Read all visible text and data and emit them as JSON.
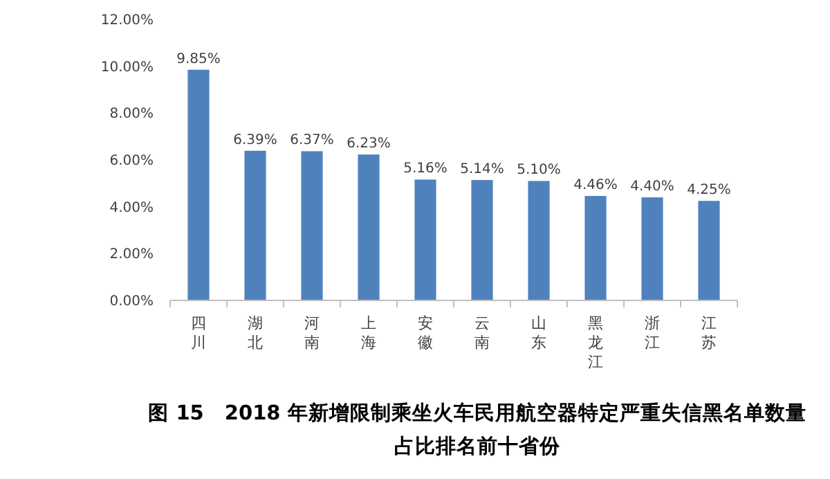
{
  "chart_data": {
    "type": "bar",
    "title": "图 15　2018 年新增限制乘坐火车民用航空器特定严重失信黑名单数量占比排名前十省份",
    "categories": [
      "四川",
      "湖北",
      "河南",
      "上海",
      "安徽",
      "云南",
      "山东",
      "黑龙江",
      "浙江",
      "江苏"
    ],
    "values": [
      9.85,
      6.39,
      6.37,
      6.23,
      5.16,
      5.14,
      5.1,
      4.46,
      4.4,
      4.25
    ],
    "value_labels": [
      "9.85%",
      "6.39%",
      "6.37%",
      "6.23%",
      "5.16%",
      "5.14%",
      "5.10%",
      "4.46%",
      "4.40%",
      "4.25%"
    ],
    "color": "#4f81bd",
    "ylim": [
      0,
      12
    ],
    "yticks": [
      {
        "value": 0,
        "label": "0.00%"
      },
      {
        "value": 2,
        "label": "2.00%"
      },
      {
        "value": 4,
        "label": "4.00%"
      },
      {
        "value": 6,
        "label": "6.00%"
      },
      {
        "value": 8,
        "label": "8.00%"
      },
      {
        "value": 10,
        "label": "10.00%"
      },
      {
        "value": 12,
        "label": "12.00%"
      }
    ],
    "grid": false
  }
}
